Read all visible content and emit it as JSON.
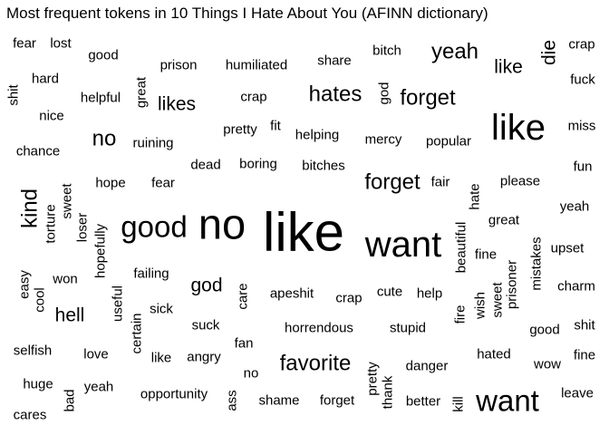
{
  "chart_data": {
    "type": "wordcloud",
    "title": "Most frequent tokens in 10 Things I Hate About You (AFINN dictionary)",
    "text_color": "#000000",
    "words": [
      {
        "text": "like",
        "rank": 1,
        "rotated": false
      },
      {
        "text": "no",
        "rank": 2,
        "rotated": false
      },
      {
        "text": "want",
        "rank": 3,
        "rotated": false
      },
      {
        "text": "like",
        "rank": 3,
        "rotated": false
      },
      {
        "text": "want",
        "rank": 4,
        "rotated": false
      },
      {
        "text": "good",
        "rank": 4,
        "rotated": false
      },
      {
        "text": "no",
        "rank": 5,
        "rotated": false
      },
      {
        "text": "yeah",
        "rank": 5,
        "rotated": false
      },
      {
        "text": "hates",
        "rank": 5,
        "rotated": false
      },
      {
        "text": "forget",
        "rank": 5,
        "rotated": false
      },
      {
        "text": "forget",
        "rank": 5,
        "rotated": false
      },
      {
        "text": "favorite",
        "rank": 5,
        "rotated": false
      },
      {
        "text": "kind",
        "rank": 5,
        "rotated": true
      },
      {
        "text": "like",
        "rank": 6,
        "rotated": false
      },
      {
        "text": "likes",
        "rank": 6,
        "rotated": false
      },
      {
        "text": "god",
        "rank": 6,
        "rotated": false
      },
      {
        "text": "hell",
        "rank": 6,
        "rotated": false
      },
      {
        "text": "die",
        "rank": 6,
        "rotated": true
      },
      {
        "text": "fear",
        "rank": 7,
        "rotated": false
      },
      {
        "text": "lost",
        "rank": 7,
        "rotated": false
      },
      {
        "text": "good",
        "rank": 7,
        "rotated": false
      },
      {
        "text": "prison",
        "rank": 7,
        "rotated": false
      },
      {
        "text": "humiliated",
        "rank": 7,
        "rotated": false
      },
      {
        "text": "share",
        "rank": 7,
        "rotated": false
      },
      {
        "text": "bitch",
        "rank": 7,
        "rotated": false
      },
      {
        "text": "crap",
        "rank": 7,
        "rotated": false
      },
      {
        "text": "hard",
        "rank": 7,
        "rotated": false
      },
      {
        "text": "fuck",
        "rank": 7,
        "rotated": false
      },
      {
        "text": "shit",
        "rank": 7,
        "rotated": true
      },
      {
        "text": "helpful",
        "rank": 7,
        "rotated": false
      },
      {
        "text": "great",
        "rank": 7,
        "rotated": true
      },
      {
        "text": "crap",
        "rank": 7,
        "rotated": false
      },
      {
        "text": "god",
        "rank": 7,
        "rotated": true
      },
      {
        "text": "nice",
        "rank": 7,
        "rotated": false
      },
      {
        "text": "miss",
        "rank": 7,
        "rotated": false
      },
      {
        "text": "pretty",
        "rank": 7,
        "rotated": false
      },
      {
        "text": "fit",
        "rank": 7,
        "rotated": false
      },
      {
        "text": "helping",
        "rank": 7,
        "rotated": false
      },
      {
        "text": "mercy",
        "rank": 7,
        "rotated": false
      },
      {
        "text": "popular",
        "rank": 7,
        "rotated": false
      },
      {
        "text": "ruining",
        "rank": 7,
        "rotated": false
      },
      {
        "text": "chance",
        "rank": 7,
        "rotated": false
      },
      {
        "text": "dead",
        "rank": 7,
        "rotated": false
      },
      {
        "text": "boring",
        "rank": 7,
        "rotated": false
      },
      {
        "text": "bitches",
        "rank": 7,
        "rotated": false
      },
      {
        "text": "fun",
        "rank": 7,
        "rotated": false
      },
      {
        "text": "hope",
        "rank": 7,
        "rotated": false
      },
      {
        "text": "fear",
        "rank": 7,
        "rotated": false
      },
      {
        "text": "fair",
        "rank": 7,
        "rotated": false
      },
      {
        "text": "please",
        "rank": 7,
        "rotated": false
      },
      {
        "text": "sweet",
        "rank": 7,
        "rotated": true
      },
      {
        "text": "hate",
        "rank": 7,
        "rotated": true
      },
      {
        "text": "yeah",
        "rank": 7,
        "rotated": false
      },
      {
        "text": "torture",
        "rank": 7,
        "rotated": true
      },
      {
        "text": "loser",
        "rank": 7,
        "rotated": true
      },
      {
        "text": "great",
        "rank": 7,
        "rotated": false
      },
      {
        "text": "hopefully",
        "rank": 7,
        "rotated": true
      },
      {
        "text": "beautiful",
        "rank": 7,
        "rotated": true
      },
      {
        "text": "mistakes",
        "rank": 7,
        "rotated": true
      },
      {
        "text": "upset",
        "rank": 7,
        "rotated": false
      },
      {
        "text": "fine",
        "rank": 7,
        "rotated": false
      },
      {
        "text": "easy",
        "rank": 7,
        "rotated": true
      },
      {
        "text": "won",
        "rank": 7,
        "rotated": false
      },
      {
        "text": "failing",
        "rank": 7,
        "rotated": false
      },
      {
        "text": "prisoner",
        "rank": 7,
        "rotated": true
      },
      {
        "text": "cool",
        "rank": 7,
        "rotated": true
      },
      {
        "text": "useful",
        "rank": 7,
        "rotated": true
      },
      {
        "text": "apeshit",
        "rank": 7,
        "rotated": false
      },
      {
        "text": "crap",
        "rank": 7,
        "rotated": false
      },
      {
        "text": "cute",
        "rank": 7,
        "rotated": false
      },
      {
        "text": "help",
        "rank": 7,
        "rotated": false
      },
      {
        "text": "wish",
        "rank": 7,
        "rotated": true
      },
      {
        "text": "sweet",
        "rank": 7,
        "rotated": true
      },
      {
        "text": "charm",
        "rank": 7,
        "rotated": false
      },
      {
        "text": "care",
        "rank": 7,
        "rotated": true
      },
      {
        "text": "sick",
        "rank": 7,
        "rotated": false
      },
      {
        "text": "certain",
        "rank": 7,
        "rotated": true
      },
      {
        "text": "fire",
        "rank": 7,
        "rotated": true
      },
      {
        "text": "suck",
        "rank": 7,
        "rotated": false
      },
      {
        "text": "horrendous",
        "rank": 7,
        "rotated": false
      },
      {
        "text": "stupid",
        "rank": 7,
        "rotated": false
      },
      {
        "text": "good",
        "rank": 7,
        "rotated": false
      },
      {
        "text": "shit",
        "rank": 7,
        "rotated": false
      },
      {
        "text": "fan",
        "rank": 7,
        "rotated": false
      },
      {
        "text": "selfish",
        "rank": 7,
        "rotated": false
      },
      {
        "text": "love",
        "rank": 7,
        "rotated": false
      },
      {
        "text": "like",
        "rank": 7,
        "rotated": false
      },
      {
        "text": "angry",
        "rank": 7,
        "rotated": false
      },
      {
        "text": "hated",
        "rank": 7,
        "rotated": false
      },
      {
        "text": "fine",
        "rank": 7,
        "rotated": false
      },
      {
        "text": "wow",
        "rank": 7,
        "rotated": false
      },
      {
        "text": "danger",
        "rank": 7,
        "rotated": false
      },
      {
        "text": "pretty",
        "rank": 7,
        "rotated": true
      },
      {
        "text": "no",
        "rank": 7,
        "rotated": false
      },
      {
        "text": "huge",
        "rank": 7,
        "rotated": false
      },
      {
        "text": "yeah",
        "rank": 7,
        "rotated": false
      },
      {
        "text": "bad",
        "rank": 7,
        "rotated": true
      },
      {
        "text": "opportunity",
        "rank": 7,
        "rotated": false
      },
      {
        "text": "thank",
        "rank": 7,
        "rotated": true
      },
      {
        "text": "leave",
        "rank": 7,
        "rotated": false
      },
      {
        "text": "ass",
        "rank": 7,
        "rotated": true
      },
      {
        "text": "shame",
        "rank": 7,
        "rotated": false
      },
      {
        "text": "forget",
        "rank": 7,
        "rotated": false
      },
      {
        "text": "better",
        "rank": 7,
        "rotated": false
      },
      {
        "text": "kill",
        "rank": 7,
        "rotated": true
      },
      {
        "text": "cares",
        "rank": 7,
        "rotated": false
      }
    ]
  }
}
